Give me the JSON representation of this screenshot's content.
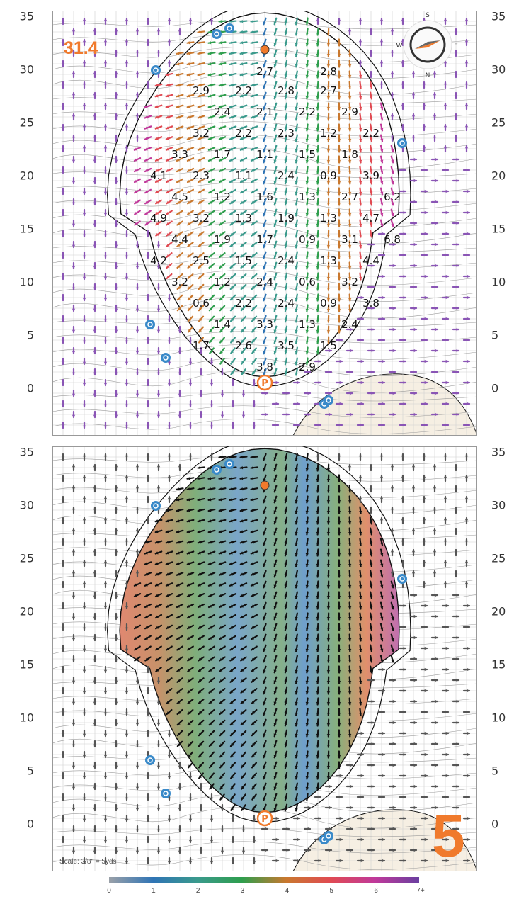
{
  "hole_number": "5",
  "yardage_label": "31.4",
  "scale_text": "Scale: 3/8\" = 5yds",
  "y_axis_ticks": [
    "35",
    "30",
    "25",
    "20",
    "15",
    "10",
    "5",
    "0"
  ],
  "colorbar": {
    "ticks": [
      "0",
      "1",
      "2",
      "3",
      "4",
      "5",
      "6",
      "7+"
    ],
    "colors": [
      "#9aa0a8",
      "#2f74b5",
      "#3a9a8c",
      "#2e9e4d",
      "#c9782e",
      "#e04a52",
      "#c0399a",
      "#6a3fa0"
    ]
  },
  "compass": {
    "letters": [
      "S",
      "N",
      "E",
      "W"
    ]
  },
  "slope_labels": [
    {
      "t": "2.7",
      "x": 8,
      "y": 29.8
    },
    {
      "t": "2.8",
      "x": 11,
      "y": 29.8
    },
    {
      "t": "2.9",
      "x": 5,
      "y": 28
    },
    {
      "t": "2.2",
      "x": 7,
      "y": 28
    },
    {
      "t": "2.8",
      "x": 9,
      "y": 28
    },
    {
      "t": "2.7",
      "x": 11,
      "y": 28
    },
    {
      "t": "2.4",
      "x": 6,
      "y": 26
    },
    {
      "t": "2.1",
      "x": 8,
      "y": 26
    },
    {
      "t": "2.2",
      "x": 10,
      "y": 26
    },
    {
      "t": "2.9",
      "x": 12,
      "y": 26
    },
    {
      "t": "3.2",
      "x": 5,
      "y": 24
    },
    {
      "t": "2.2",
      "x": 7,
      "y": 24
    },
    {
      "t": "2.3",
      "x": 9,
      "y": 24
    },
    {
      "t": "1.2",
      "x": 11,
      "y": 24
    },
    {
      "t": "2.2",
      "x": 13,
      "y": 24
    },
    {
      "t": "3.3",
      "x": 4,
      "y": 22
    },
    {
      "t": "1.7",
      "x": 6,
      "y": 22
    },
    {
      "t": "1.1",
      "x": 8,
      "y": 22
    },
    {
      "t": "1.5",
      "x": 10,
      "y": 22
    },
    {
      "t": "1.8",
      "x": 12,
      "y": 22
    },
    {
      "t": "4.1",
      "x": 3,
      "y": 20
    },
    {
      "t": "2.3",
      "x": 5,
      "y": 20
    },
    {
      "t": "1.1",
      "x": 7,
      "y": 20
    },
    {
      "t": "2.4",
      "x": 9,
      "y": 20
    },
    {
      "t": "0.9",
      "x": 11,
      "y": 20
    },
    {
      "t": "3.9",
      "x": 13,
      "y": 20
    },
    {
      "t": "4.5",
      "x": 4,
      "y": 18
    },
    {
      "t": "1.2",
      "x": 6,
      "y": 18
    },
    {
      "t": "1.6",
      "x": 8,
      "y": 18
    },
    {
      "t": "1.3",
      "x": 10,
      "y": 18
    },
    {
      "t": "2.7",
      "x": 12,
      "y": 18
    },
    {
      "t": "6.2",
      "x": 14,
      "y": 18
    },
    {
      "t": "4.9",
      "x": 3,
      "y": 16
    },
    {
      "t": "3.2",
      "x": 5,
      "y": 16
    },
    {
      "t": "1.3",
      "x": 7,
      "y": 16
    },
    {
      "t": "1.9",
      "x": 9,
      "y": 16
    },
    {
      "t": "1.3",
      "x": 11,
      "y": 16
    },
    {
      "t": "4.7",
      "x": 13,
      "y": 16
    },
    {
      "t": "4.4",
      "x": 4,
      "y": 14
    },
    {
      "t": "1.9",
      "x": 6,
      "y": 14
    },
    {
      "t": "1.7",
      "x": 8,
      "y": 14
    },
    {
      "t": "0.9",
      "x": 10,
      "y": 14
    },
    {
      "t": "3.1",
      "x": 12,
      "y": 14
    },
    {
      "t": "6.8",
      "x": 14,
      "y": 14
    },
    {
      "t": "4.2",
      "x": 3,
      "y": 12
    },
    {
      "t": "2.5",
      "x": 5,
      "y": 12
    },
    {
      "t": "1.5",
      "x": 7,
      "y": 12
    },
    {
      "t": "2.4",
      "x": 9,
      "y": 12
    },
    {
      "t": "1.3",
      "x": 11,
      "y": 12
    },
    {
      "t": "4.4",
      "x": 13,
      "y": 12
    },
    {
      "t": "3.2",
      "x": 4,
      "y": 10
    },
    {
      "t": "1.2",
      "x": 6,
      "y": 10
    },
    {
      "t": "2.4",
      "x": 8,
      "y": 10
    },
    {
      "t": "0.6",
      "x": 10,
      "y": 10
    },
    {
      "t": "3.2",
      "x": 12,
      "y": 10
    },
    {
      "t": "0.6",
      "x": 5,
      "y": 8
    },
    {
      "t": "2.2",
      "x": 7,
      "y": 8
    },
    {
      "t": "2.4",
      "x": 9,
      "y": 8
    },
    {
      "t": "0.9",
      "x": 11,
      "y": 8
    },
    {
      "t": "3.8",
      "x": 13,
      "y": 8
    },
    {
      "t": "1.4",
      "x": 6,
      "y": 6
    },
    {
      "t": "3.3",
      "x": 8,
      "y": 6
    },
    {
      "t": "1.3",
      "x": 10,
      "y": 6
    },
    {
      "t": "2.4",
      "x": 12,
      "y": 6
    },
    {
      "t": "1.7",
      "x": 5,
      "y": 4
    },
    {
      "t": "2.6",
      "x": 7,
      "y": 4
    },
    {
      "t": "3.5",
      "x": 9,
      "y": 4
    },
    {
      "t": "1.5",
      "x": 11,
      "y": 4
    },
    {
      "t": "3.8",
      "x": 8,
      "y": 2
    },
    {
      "t": "2.9",
      "x": 10,
      "y": 2
    }
  ]
}
